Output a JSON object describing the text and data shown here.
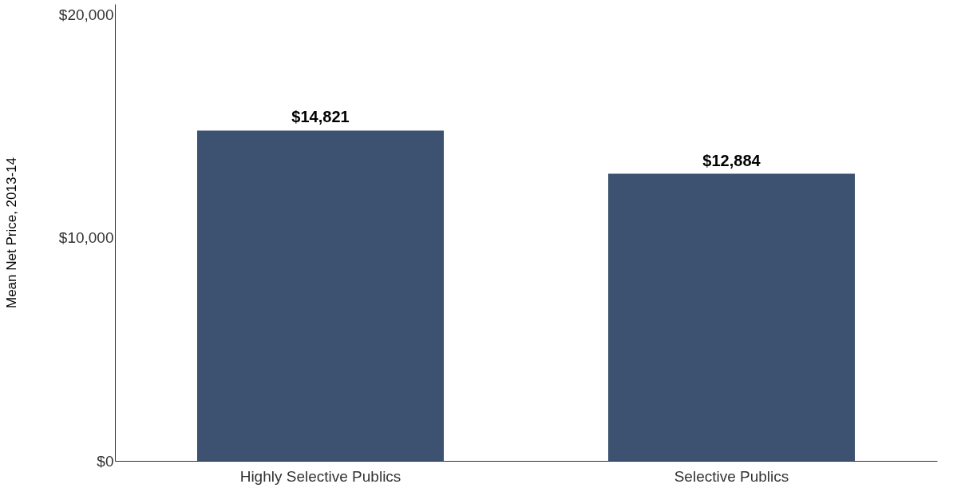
{
  "chart_data": {
    "type": "bar",
    "ylabel": "Mean Net Price, 2013-14",
    "categories": [
      "Highly Selective Publics",
      "Selective Publics"
    ],
    "values": [
      14821,
      12884
    ],
    "color": "#3d5170",
    "value_labels": [
      "$14,821",
      "$12,884"
    ],
    "ylim": [
      0,
      20500
    ],
    "yticks": [
      {
        "value": 0,
        "label": "$0"
      },
      {
        "value": 10000,
        "label": "$10,000"
      },
      {
        "value": 20000,
        "label": "$20,000"
      }
    ],
    "grid": false
  }
}
